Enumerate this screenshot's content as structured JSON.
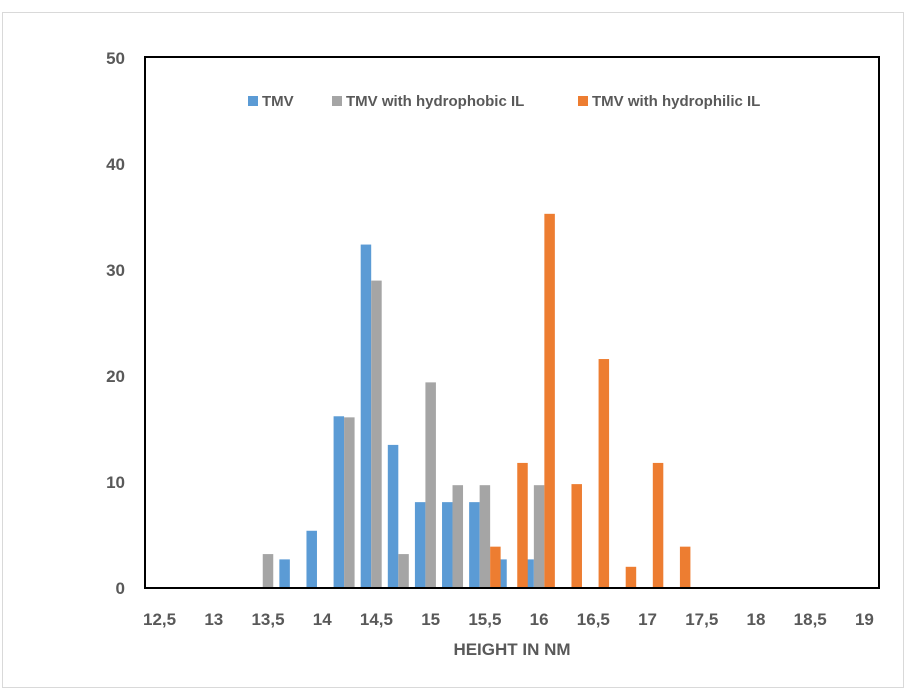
{
  "chart_data": {
    "type": "bar",
    "title": "",
    "xlabel": "HEIGHT IN NM",
    "ylabel": "",
    "ylim": [
      0,
      50
    ],
    "yticks": [
      0,
      10,
      20,
      30,
      40,
      50
    ],
    "x_ticks": [
      "12,5",
      "13",
      "13,5",
      "14",
      "14,5",
      "15",
      "15,5",
      "16",
      "16,5",
      "17",
      "17,5",
      "18",
      "18,5",
      "19"
    ],
    "categories": [
      "12,5",
      "12,75",
      "13",
      "13,25",
      "13,5",
      "13,75",
      "14",
      "14,25",
      "14,5",
      "14,75",
      "15",
      "15,25",
      "15,5",
      "15,75",
      "16",
      "16,25",
      "16,5",
      "16,75",
      "17",
      "17,25",
      "17,5",
      "17,75",
      "18",
      "18,25",
      "18,5",
      "18,75",
      "19"
    ],
    "series": [
      {
        "name": "TMV",
        "color": "#5b9bd5",
        "values": [
          0,
          0,
          0,
          0,
          0,
          2.7,
          5.4,
          16.2,
          32.4,
          13.5,
          8.1,
          8.1,
          8.1,
          2.7,
          2.7,
          0,
          0,
          0,
          0,
          0,
          0,
          0,
          0,
          0,
          0,
          0,
          0
        ]
      },
      {
        "name": "TMV with hydrophobic IL",
        "color": "#a5a5a5",
        "values": [
          0,
          0,
          0,
          0,
          3.2,
          0,
          0,
          16.1,
          29.0,
          3.2,
          19.4,
          9.7,
          9.7,
          0,
          9.7,
          0,
          0,
          0,
          0,
          0,
          0,
          0,
          0,
          0,
          0,
          0,
          0
        ]
      },
      {
        "name": "TMV with hydrophilic IL",
        "color": "#ed7d31",
        "values": [
          0,
          0,
          0,
          0,
          0,
          0,
          0,
          0,
          0,
          0,
          0,
          0,
          3.9,
          11.8,
          35.3,
          9.8,
          21.6,
          2.0,
          11.8,
          3.9,
          0,
          0,
          0,
          0,
          0,
          0,
          0
        ]
      }
    ],
    "legend": "top",
    "grid": false
  }
}
